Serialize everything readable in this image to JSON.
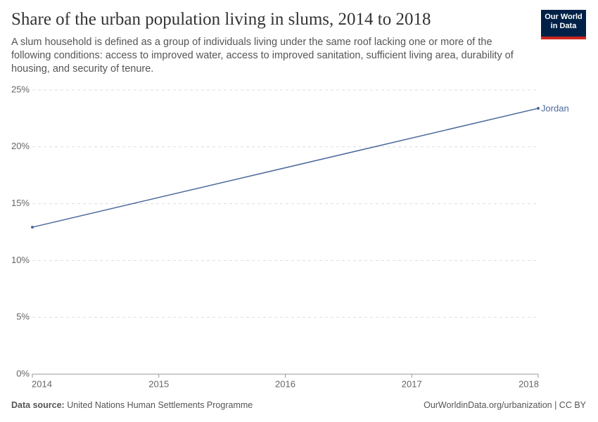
{
  "chart_data": {
    "type": "line",
    "title": "Share of the urban population living in slums, 2014 to 2018",
    "subtitle": "A slum household is defined as a group of individuals living under the same roof lacking one or more of the following conditions: access to improved water, access to improved sanitation, sufficient living area, durability of housing, and security of tenure.",
    "x": [
      2014,
      2018
    ],
    "series": [
      {
        "name": "Jordan",
        "color": "#4c6a9c",
        "values": [
          12.93,
          23.39
        ]
      }
    ],
    "xlim": [
      2014,
      2018
    ],
    "xticks": [
      2014,
      2015,
      2016,
      2017,
      2018
    ],
    "ylim": [
      0,
      25
    ],
    "yticks": [
      {
        "value": 0,
        "label": "0%"
      },
      {
        "value": 5,
        "label": "5%"
      },
      {
        "value": 10,
        "label": "10%"
      },
      {
        "value": 15,
        "label": "15%"
      },
      {
        "value": 20,
        "label": "20%"
      },
      {
        "value": 25,
        "label": "25%"
      }
    ],
    "grid": true
  },
  "logo": "Our World in Data",
  "footer": {
    "source_label": "Data source:",
    "source": "United Nations Human Settlements Programme",
    "license": "OurWorldinData.org/urbanization | CC BY"
  }
}
